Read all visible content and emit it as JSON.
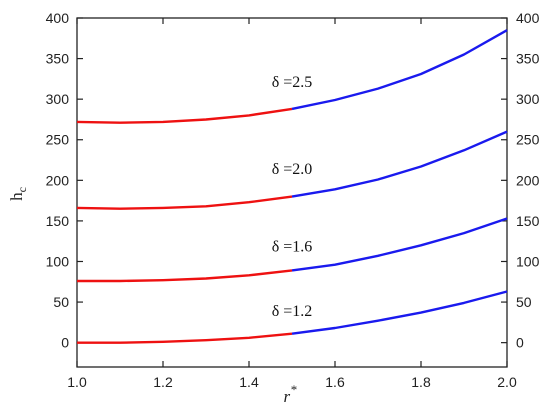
{
  "chart_data": {
    "type": "line",
    "title": "",
    "xlabel": "r",
    "xlabel_superscript": "*",
    "ylabel": "h",
    "ylabel_subscript": "c",
    "xlim": [
      1.0,
      2.0
    ],
    "ylim": [
      -30,
      400
    ],
    "x_ticks": [
      "1.0",
      "1.2",
      "1.4",
      "1.6",
      "1.8",
      "2.0"
    ],
    "y_ticks": [
      "0",
      "50",
      "100",
      "150",
      "200",
      "250",
      "300",
      "350",
      "400"
    ],
    "right_y_ticks": [
      "0",
      "50",
      "100",
      "150",
      "200",
      "250",
      "300",
      "350",
      "400"
    ],
    "grid": false,
    "segment_split_x": 1.5,
    "colors": {
      "segment_low": "#ee1111",
      "segment_high": "#1a1aee",
      "axis": "#222222"
    },
    "series": [
      {
        "label": "δ =1.2",
        "label_at": [
          1.5,
          33
        ],
        "x": [
          1.0,
          1.1,
          1.2,
          1.3,
          1.4,
          1.5,
          1.6,
          1.7,
          1.8,
          1.9,
          2.0
        ],
        "y": [
          0,
          0,
          1,
          3,
          6,
          11,
          18,
          27,
          37,
          49,
          63
        ]
      },
      {
        "label": "δ =1.6",
        "label_at": [
          1.5,
          112
        ],
        "x": [
          1.0,
          1.1,
          1.2,
          1.3,
          1.4,
          1.5,
          1.6,
          1.7,
          1.8,
          1.9,
          2.0
        ],
        "y": [
          76,
          76,
          77,
          79,
          83,
          89,
          96,
          107,
          120,
          135,
          153
        ]
      },
      {
        "label": "δ =2.0",
        "label_at": [
          1.5,
          208
        ],
        "x": [
          1.0,
          1.1,
          1.2,
          1.3,
          1.4,
          1.5,
          1.6,
          1.7,
          1.8,
          1.9,
          2.0
        ],
        "y": [
          166,
          165,
          166,
          168,
          173,
          180,
          189,
          201,
          217,
          237,
          260
        ]
      },
      {
        "label": "δ =2.5",
        "label_at": [
          1.5,
          315
        ],
        "x": [
          1.0,
          1.1,
          1.2,
          1.3,
          1.4,
          1.5,
          1.6,
          1.7,
          1.8,
          1.9,
          2.0
        ],
        "y": [
          272,
          271,
          272,
          275,
          280,
          288,
          299,
          313,
          331,
          355,
          385
        ]
      }
    ]
  }
}
